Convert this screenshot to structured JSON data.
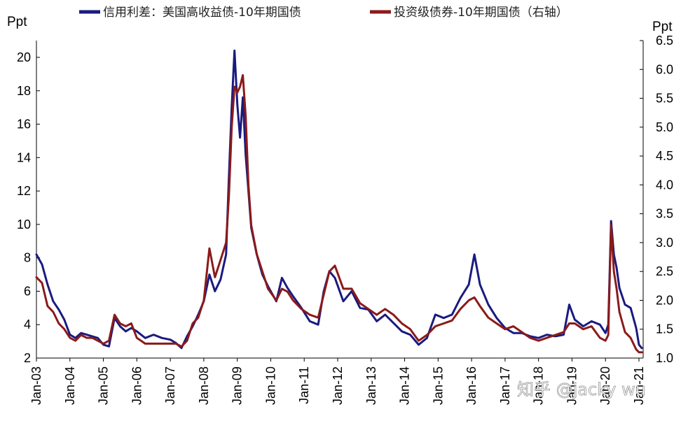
{
  "chart_data": {
    "type": "line",
    "title": "",
    "y_left_unit": "Ppt",
    "y_right_unit": "Ppt",
    "ylim_left": [
      2,
      21
    ],
    "ylim_right": [
      1.0,
      6.5
    ],
    "yticks_left": [
      "2",
      "4",
      "6",
      "8",
      "10",
      "12",
      "14",
      "16",
      "18",
      "20"
    ],
    "yticks_right": [
      "1.0",
      "1.5",
      "2.0",
      "2.5",
      "3.0",
      "3.5",
      "4.0",
      "4.5",
      "5.0",
      "5.5",
      "6.0",
      "6.5"
    ],
    "x_ticks": [
      "Jan-03",
      "Jan-04",
      "Jan-05",
      "Jan-06",
      "Jan-07",
      "Jan-08",
      "Jan-09",
      "Jan-10",
      "Jan-11",
      "Jan-12",
      "Jan-13",
      "Jan-14",
      "Jan-15",
      "Jan-16",
      "Jan-17",
      "Jan-18",
      "Jan-19",
      "Jan-20",
      "Jan-21"
    ],
    "legend_position": "top",
    "grid": false,
    "series": [
      {
        "name": "信用利差：美国高收益债-10年期国债",
        "axis": "left",
        "color": "#1a1a80",
        "points": [
          [
            "2003-01",
            8.2
          ],
          [
            "2003-03",
            7.6
          ],
          [
            "2003-05",
            6.4
          ],
          [
            "2003-07",
            5.4
          ],
          [
            "2003-09",
            4.9
          ],
          [
            "2003-11",
            4.3
          ],
          [
            "2004-01",
            3.4
          ],
          [
            "2004-03",
            3.2
          ],
          [
            "2004-05",
            3.5
          ],
          [
            "2004-07",
            3.4
          ],
          [
            "2004-09",
            3.3
          ],
          [
            "2004-11",
            3.2
          ],
          [
            "2005-01",
            2.8
          ],
          [
            "2005-03",
            2.7
          ],
          [
            "2005-05",
            4.4
          ],
          [
            "2005-07",
            3.9
          ],
          [
            "2005-09",
            3.6
          ],
          [
            "2005-11",
            3.8
          ],
          [
            "2006-01",
            3.6
          ],
          [
            "2006-04",
            3.2
          ],
          [
            "2006-07",
            3.4
          ],
          [
            "2006-10",
            3.2
          ],
          [
            "2007-01",
            3.1
          ],
          [
            "2007-03",
            2.9
          ],
          [
            "2007-05",
            2.6
          ],
          [
            "2007-07",
            3.3
          ],
          [
            "2007-09",
            3.9
          ],
          [
            "2007-11",
            4.6
          ],
          [
            "2008-01",
            5.4
          ],
          [
            "2008-03",
            7.0
          ],
          [
            "2008-05",
            6.0
          ],
          [
            "2008-07",
            6.7
          ],
          [
            "2008-09",
            8.2
          ],
          [
            "2008-10",
            12.8
          ],
          [
            "2008-11",
            17.0
          ],
          [
            "2008-12",
            20.4
          ],
          [
            "2009-01",
            17.2
          ],
          [
            "2009-02",
            15.2
          ],
          [
            "2009-03",
            17.6
          ],
          [
            "2009-04",
            14.2
          ],
          [
            "2009-05",
            12.0
          ],
          [
            "2009-06",
            9.8
          ],
          [
            "2009-08",
            8.2
          ],
          [
            "2009-10",
            7.0
          ],
          [
            "2009-12",
            6.3
          ],
          [
            "2010-03",
            5.4
          ],
          [
            "2010-05",
            6.8
          ],
          [
            "2010-07",
            6.2
          ],
          [
            "2010-09",
            5.7
          ],
          [
            "2010-12",
            5.0
          ],
          [
            "2011-03",
            4.2
          ],
          [
            "2011-06",
            4.0
          ],
          [
            "2011-08",
            6.0
          ],
          [
            "2011-10",
            7.2
          ],
          [
            "2011-12",
            6.8
          ],
          [
            "2012-03",
            5.4
          ],
          [
            "2012-06",
            6.0
          ],
          [
            "2012-09",
            5.0
          ],
          [
            "2012-12",
            4.9
          ],
          [
            "2013-03",
            4.2
          ],
          [
            "2013-06",
            4.6
          ],
          [
            "2013-09",
            4.1
          ],
          [
            "2013-12",
            3.6
          ],
          [
            "2014-03",
            3.4
          ],
          [
            "2014-06",
            2.8
          ],
          [
            "2014-09",
            3.2
          ],
          [
            "2014-12",
            4.6
          ],
          [
            "2015-03",
            4.4
          ],
          [
            "2015-06",
            4.6
          ],
          [
            "2015-09",
            5.6
          ],
          [
            "2015-12",
            6.4
          ],
          [
            "2016-02",
            8.2
          ],
          [
            "2016-04",
            6.4
          ],
          [
            "2016-07",
            5.2
          ],
          [
            "2016-10",
            4.4
          ],
          [
            "2017-01",
            3.8
          ],
          [
            "2017-04",
            3.5
          ],
          [
            "2017-07",
            3.5
          ],
          [
            "2017-10",
            3.3
          ],
          [
            "2018-01",
            3.2
          ],
          [
            "2018-04",
            3.4
          ],
          [
            "2018-07",
            3.3
          ],
          [
            "2018-10",
            3.4
          ],
          [
            "2018-12",
            5.2
          ],
          [
            "2019-02",
            4.3
          ],
          [
            "2019-05",
            3.9
          ],
          [
            "2019-08",
            4.2
          ],
          [
            "2019-11",
            4.0
          ],
          [
            "2020-01",
            3.5
          ],
          [
            "2020-02",
            4.0
          ],
          [
            "2020-03",
            10.2
          ],
          [
            "2020-04",
            8.2
          ],
          [
            "2020-05",
            7.4
          ],
          [
            "2020-06",
            6.2
          ],
          [
            "2020-08",
            5.2
          ],
          [
            "2020-10",
            5.0
          ],
          [
            "2020-12",
            3.8
          ],
          [
            "2021-01",
            2.8
          ],
          [
            "2021-02",
            2.6
          ]
        ]
      },
      {
        "name": "投资级债券-10年期国债（右轴）",
        "axis": "right",
        "color": "#8b1a1a",
        "points": [
          [
            "2003-01",
            2.4
          ],
          [
            "2003-03",
            2.3
          ],
          [
            "2003-05",
            1.9
          ],
          [
            "2003-07",
            1.8
          ],
          [
            "2003-09",
            1.6
          ],
          [
            "2003-11",
            1.5
          ],
          [
            "2004-01",
            1.35
          ],
          [
            "2004-03",
            1.3
          ],
          [
            "2004-05",
            1.4
          ],
          [
            "2004-07",
            1.35
          ],
          [
            "2004-09",
            1.35
          ],
          [
            "2004-11",
            1.3
          ],
          [
            "2005-01",
            1.25
          ],
          [
            "2005-03",
            1.3
          ],
          [
            "2005-05",
            1.75
          ],
          [
            "2005-07",
            1.6
          ],
          [
            "2005-09",
            1.55
          ],
          [
            "2005-11",
            1.6
          ],
          [
            "2006-01",
            1.35
          ],
          [
            "2006-04",
            1.25
          ],
          [
            "2006-07",
            1.25
          ],
          [
            "2006-10",
            1.25
          ],
          [
            "2007-01",
            1.25
          ],
          [
            "2007-03",
            1.25
          ],
          [
            "2007-05",
            1.2
          ],
          [
            "2007-07",
            1.3
          ],
          [
            "2007-09",
            1.6
          ],
          [
            "2007-11",
            1.7
          ],
          [
            "2008-01",
            2.0
          ],
          [
            "2008-03",
            2.9
          ],
          [
            "2008-05",
            2.4
          ],
          [
            "2008-07",
            2.7
          ],
          [
            "2008-09",
            3.0
          ],
          [
            "2008-10",
            3.8
          ],
          [
            "2008-11",
            5.0
          ],
          [
            "2008-12",
            5.7
          ],
          [
            "2009-01",
            5.6
          ],
          [
            "2009-02",
            5.7
          ],
          [
            "2009-03",
            5.9
          ],
          [
            "2009-04",
            5.2
          ],
          [
            "2009-05",
            4.0
          ],
          [
            "2009-06",
            3.3
          ],
          [
            "2009-08",
            2.8
          ],
          [
            "2009-10",
            2.5
          ],
          [
            "2009-12",
            2.2
          ],
          [
            "2010-03",
            2.0
          ],
          [
            "2010-05",
            2.2
          ],
          [
            "2010-07",
            2.15
          ],
          [
            "2010-09",
            2.0
          ],
          [
            "2010-12",
            1.85
          ],
          [
            "2011-03",
            1.75
          ],
          [
            "2011-06",
            1.7
          ],
          [
            "2011-08",
            2.1
          ],
          [
            "2011-10",
            2.5
          ],
          [
            "2011-12",
            2.6
          ],
          [
            "2012-03",
            2.2
          ],
          [
            "2012-06",
            2.2
          ],
          [
            "2012-09",
            1.95
          ],
          [
            "2012-12",
            1.85
          ],
          [
            "2013-03",
            1.75
          ],
          [
            "2013-06",
            1.85
          ],
          [
            "2013-09",
            1.75
          ],
          [
            "2013-12",
            1.6
          ],
          [
            "2014-03",
            1.5
          ],
          [
            "2014-06",
            1.3
          ],
          [
            "2014-09",
            1.4
          ],
          [
            "2014-12",
            1.55
          ],
          [
            "2015-03",
            1.6
          ],
          [
            "2015-06",
            1.65
          ],
          [
            "2015-09",
            1.85
          ],
          [
            "2015-12",
            2.0
          ],
          [
            "2016-02",
            2.05
          ],
          [
            "2016-04",
            1.9
          ],
          [
            "2016-07",
            1.7
          ],
          [
            "2016-10",
            1.6
          ],
          [
            "2017-01",
            1.5
          ],
          [
            "2017-04",
            1.55
          ],
          [
            "2017-07",
            1.45
          ],
          [
            "2017-10",
            1.35
          ],
          [
            "2018-01",
            1.3
          ],
          [
            "2018-04",
            1.35
          ],
          [
            "2018-07",
            1.4
          ],
          [
            "2018-10",
            1.45
          ],
          [
            "2018-12",
            1.6
          ],
          [
            "2019-02",
            1.6
          ],
          [
            "2019-05",
            1.5
          ],
          [
            "2019-08",
            1.55
          ],
          [
            "2019-11",
            1.35
          ],
          [
            "2020-01",
            1.3
          ],
          [
            "2020-02",
            1.4
          ],
          [
            "2020-03",
            3.3
          ],
          [
            "2020-04",
            2.5
          ],
          [
            "2020-05",
            2.2
          ],
          [
            "2020-06",
            1.8
          ],
          [
            "2020-08",
            1.45
          ],
          [
            "2020-10",
            1.35
          ],
          [
            "2020-12",
            1.15
          ],
          [
            "2021-01",
            1.1
          ],
          [
            "2021-02",
            1.1
          ]
        ]
      }
    ]
  },
  "watermark": "知乎 @jacky wu"
}
